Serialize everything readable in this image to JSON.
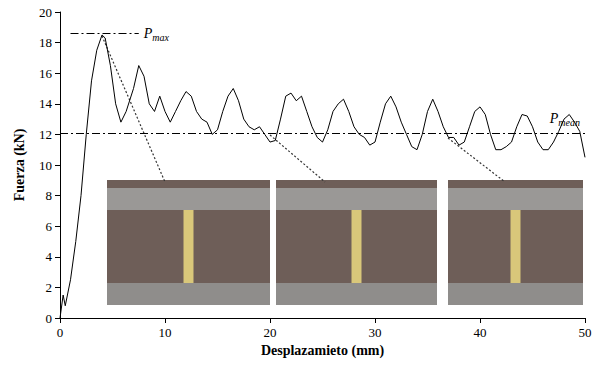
{
  "chart_data": {
    "type": "line",
    "x_label": "Desplazamieto (mm)",
    "y_label": "Fuerza (kN)",
    "x": [
      0,
      0.3,
      0.5,
      1,
      1.5,
      2,
      2.5,
      3,
      3.5,
      4,
      4.3,
      4.8,
      5.3,
      5.8,
      6.3,
      7,
      7.5,
      8,
      8.5,
      9,
      9.5,
      10,
      10.5,
      11,
      11.5,
      12,
      12.5,
      13,
      13.5,
      14,
      14.5,
      15,
      15.5,
      16,
      16.5,
      17,
      17.5,
      18,
      18.5,
      19,
      19.5,
      20,
      20.5,
      21,
      21.5,
      22,
      22.5,
      23,
      23.5,
      24,
      24.5,
      25,
      25.5,
      26,
      26.5,
      27,
      27.5,
      28,
      28.5,
      29,
      29.5,
      30,
      30.5,
      31,
      31.5,
      32,
      32.5,
      33,
      33.5,
      34,
      34.5,
      35,
      35.5,
      36,
      36.5,
      37,
      37.5,
      38,
      38.5,
      39,
      39.5,
      40,
      40.5,
      41,
      41.5,
      42,
      42.5,
      43,
      43.5,
      44,
      44.5,
      45,
      45.5,
      46,
      46.5,
      47,
      47.5,
      48,
      48.5,
      49,
      49.5,
      50
    ],
    "values": [
      0,
      1.5,
      0.8,
      2.5,
      5,
      8,
      12,
      15.5,
      17.5,
      18.5,
      18.3,
      16.5,
      14,
      12.8,
      13.5,
      15,
      16.5,
      15.8,
      14,
      13.5,
      14.5,
      13.5,
      12.8,
      13.5,
      14.2,
      14.8,
      14.5,
      13.5,
      13,
      12.8,
      12,
      12.3,
      13.5,
      14.5,
      15,
      14.2,
      13,
      12.5,
      12.3,
      12.5,
      12,
      11.5,
      11.6,
      13,
      14.5,
      14.7,
      14.2,
      14.5,
      13.5,
      12.5,
      11.8,
      11.5,
      12.3,
      13.5,
      14,
      14.3,
      13.5,
      12.5,
      12,
      11.8,
      11.3,
      11.5,
      12.8,
      14,
      14.5,
      13.8,
      12.8,
      12,
      11.2,
      11,
      12,
      13.5,
      14.3,
      13.5,
      12.5,
      11.8,
      11.8,
      11.3,
      11.5,
      12.5,
      13.5,
      13.8,
      13.3,
      12,
      11,
      11,
      11.2,
      11.5,
      12.5,
      13.3,
      13.2,
      12.5,
      11.5,
      11,
      11,
      11.5,
      12.2,
      13,
      13.3,
      12.8,
      12.2,
      10.5
    ],
    "color": "#000000",
    "xlim": [
      0,
      50
    ],
    "xticks": [
      0,
      10,
      20,
      30,
      40,
      50
    ],
    "ylim": [
      0,
      20
    ],
    "yticks": [
      0,
      2,
      4,
      6,
      8,
      10,
      12,
      14,
      16,
      18,
      20
    ],
    "grid": false,
    "annotations": [
      {
        "text": "P",
        "sub": "max",
        "y": 18.6,
        "x_range": [
          1,
          7.5
        ]
      },
      {
        "text": "P",
        "sub": "mean",
        "y": 12.1,
        "x_range": [
          0,
          50
        ]
      }
    ]
  }
}
